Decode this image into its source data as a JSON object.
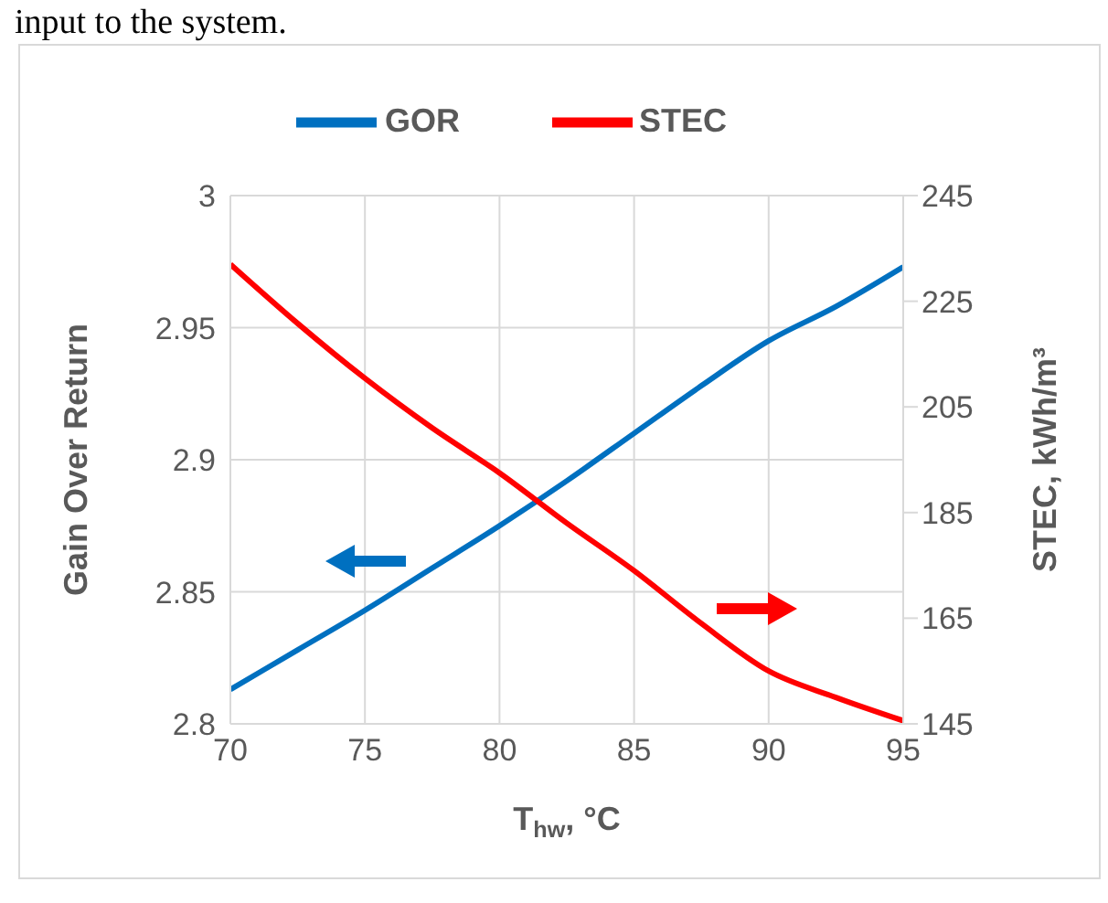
{
  "chart_data": {
    "type": "line",
    "annotations": [
      "input to the system."
    ],
    "xlabel": "T$_{hw}$, °C",
    "ylabel": "Gain Over Return",
    "y2label": "STEC, kWh/m³",
    "x": [
      70,
      72.5,
      75,
      77.5,
      80,
      82.5,
      85,
      87.5,
      90,
      92.5,
      95
    ],
    "series": [
      {
        "name": "GOR",
        "color": "#0070c0",
        "values": [
          2.813,
          2.828,
          2.843,
          2.859,
          2.875,
          2.892,
          2.91,
          2.928,
          2.945,
          2.958,
          2.973
        ]
      },
      {
        "name": "STEC",
        "color": "#ff0000",
        "axis": "y2",
        "values": [
          232,
          220.8,
          210.4,
          201,
          192.5,
          183,
          174,
          164,
          155,
          150,
          145.6
        ]
      }
    ],
    "xlim": [
      70,
      95
    ],
    "xticks": [
      70,
      75,
      80,
      85,
      90,
      95
    ],
    "ylim": [
      2.8,
      3
    ],
    "yticks": [
      2.8,
      2.85,
      2.9,
      2.95,
      3
    ],
    "y2lim": [
      145,
      245
    ],
    "y2ticks": [
      145,
      165,
      185,
      205,
      225,
      245
    ],
    "grid": true,
    "legend": "top",
    "line_style": "solid",
    "marker": "none"
  }
}
